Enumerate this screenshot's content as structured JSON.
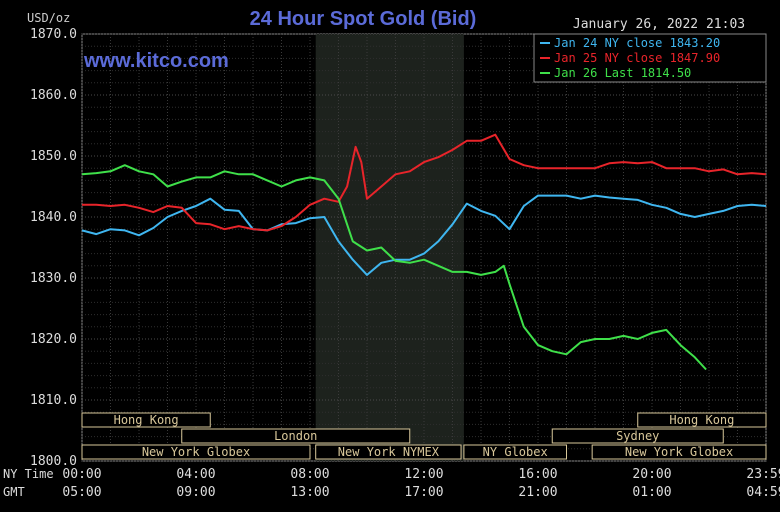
{
  "chart_data": {
    "type": "line",
    "title": "24 Hour Spot Gold (Bid)",
    "watermark": "www.kitco.com",
    "ylabel": "USD/oz",
    "timestamp": "January 26, 2022 21:03",
    "ylim": [
      1800,
      1870
    ],
    "yticks": [
      "1870.0",
      "1860.0",
      "1850.0",
      "1840.0",
      "1830.0",
      "1820.0",
      "1810.0",
      "1800.0"
    ],
    "xlim": [
      0,
      24
    ],
    "grid": true,
    "legend_position": "top-right",
    "x_time_rows": [
      {
        "label": "NY Time",
        "ticks": [
          {
            "h": 0,
            "t": "00:00"
          },
          {
            "h": 4,
            "t": "04:00"
          },
          {
            "h": 8,
            "t": "08:00"
          },
          {
            "h": 12,
            "t": "12:00"
          },
          {
            "h": 16,
            "t": "16:00"
          },
          {
            "h": 20,
            "t": "20:00"
          },
          {
            "h": 24,
            "t": "23:59"
          }
        ]
      },
      {
        "label": "GMT",
        "ticks": [
          {
            "h": 0,
            "t": "05:00"
          },
          {
            "h": 4,
            "t": "09:00"
          },
          {
            "h": 8,
            "t": "13:00"
          },
          {
            "h": 12,
            "t": "17:00"
          },
          {
            "h": 16,
            "t": "21:00"
          },
          {
            "h": 20,
            "t": "01:00"
          },
          {
            "h": 24,
            "t": "04:59"
          }
        ]
      }
    ],
    "shaded_session": {
      "start": 8.2,
      "end": 13.4
    },
    "sessions": [
      {
        "name": "Hong Kong",
        "start": 0,
        "end": 4.5,
        "row": 0
      },
      {
        "name": "Hong Kong",
        "start": 19.5,
        "end": 24,
        "row": 0
      },
      {
        "name": "London",
        "start": 3.5,
        "end": 11.5,
        "row": 1
      },
      {
        "name": "Sydney",
        "start": 16.5,
        "end": 22.5,
        "row": 1
      },
      {
        "name": "New York Globex",
        "start": 0,
        "end": 8.0,
        "row": 2
      },
      {
        "name": "New York NYMEX",
        "start": 8.2,
        "end": 13.3,
        "row": 2
      },
      {
        "name": "NY Globex",
        "start": 13.4,
        "end": 17.0,
        "row": 2
      },
      {
        "name": "New York Globex",
        "start": 17.9,
        "end": 24,
        "row": 2
      }
    ],
    "series": [
      {
        "name": "Jan 24 NY close 1843.20",
        "color": "#3fb6f0",
        "x": [
          0,
          0.5,
          1,
          1.5,
          2,
          2.5,
          3,
          3.5,
          4,
          4.5,
          5,
          5.5,
          6,
          6.5,
          7,
          7.5,
          8,
          8.5,
          9,
          9.5,
          10,
          10.5,
          11,
          11.5,
          12,
          12.5,
          13,
          13.5,
          14,
          14.5,
          15,
          15.5,
          16,
          16.5,
          17,
          17.5,
          18,
          18.5,
          19,
          19.5,
          20,
          20.5,
          21,
          21.5,
          22,
          22.5,
          23,
          23.5,
          24
        ],
        "y": [
          1837.8,
          1837.2,
          1838.0,
          1837.8,
          1837.0,
          1838.2,
          1840.0,
          1841.0,
          1841.8,
          1843.0,
          1841.2,
          1841.0,
          1838.0,
          1837.8,
          1838.8,
          1839.0,
          1839.8,
          1840.0,
          1836.0,
          1833.0,
          1830.5,
          1832.5,
          1833.0,
          1833.0,
          1834.0,
          1836.0,
          1838.8,
          1842.2,
          1841.0,
          1840.2,
          1838.0,
          1841.8,
          1843.5,
          1843.5,
          1843.5,
          1843.0,
          1843.5,
          1843.2,
          1843.0,
          1842.8,
          1842.0,
          1841.5,
          1840.5,
          1840.0,
          1840.5,
          1841.0,
          1841.8,
          1842.0,
          1841.8
        ]
      },
      {
        "name": "Jan 25 NY close 1847.90",
        "color": "#e8242a",
        "x": [
          0,
          0.5,
          1,
          1.5,
          2,
          2.5,
          3,
          3.5,
          4,
          4.5,
          5,
          5.5,
          6,
          6.5,
          7,
          7.5,
          8,
          8.5,
          9,
          9.3,
          9.6,
          9.8,
          10.0,
          10.5,
          11,
          11.5,
          12,
          12.5,
          13,
          13.5,
          14,
          14.5,
          15,
          15.5,
          16,
          16.5,
          17,
          17.5,
          18,
          18.5,
          19,
          19.5,
          20,
          20.5,
          21,
          21.5,
          22,
          22.5,
          23,
          23.5,
          24
        ],
        "y": [
          1842.0,
          1842.0,
          1841.8,
          1842.0,
          1841.5,
          1840.8,
          1841.8,
          1841.5,
          1839.0,
          1838.8,
          1838.0,
          1838.5,
          1838.0,
          1837.8,
          1838.5,
          1840.0,
          1842.0,
          1843.0,
          1842.5,
          1845.0,
          1851.5,
          1849.0,
          1843.0,
          1845.0,
          1847.0,
          1847.5,
          1849.0,
          1849.8,
          1851.0,
          1852.5,
          1852.5,
          1853.5,
          1849.5,
          1848.5,
          1848.0,
          1848.0,
          1848.0,
          1848.0,
          1848.0,
          1848.8,
          1849.0,
          1848.8,
          1849.0,
          1848.0,
          1848.0,
          1848.0,
          1847.5,
          1847.8,
          1847.0,
          1847.2,
          1847.0
        ]
      },
      {
        "name": "Jan 26 Last 1814.50",
        "color": "#3fe04a",
        "x": [
          0,
          0.5,
          1,
          1.5,
          2,
          2.5,
          3,
          3.5,
          4,
          4.5,
          5,
          5.5,
          6,
          6.5,
          7,
          7.5,
          8,
          8.5,
          9,
          9.5,
          10,
          10.5,
          11,
          11.5,
          12,
          12.5,
          13,
          13.5,
          14,
          14.5,
          14.8,
          15,
          15.5,
          16,
          16.5,
          17,
          17.5,
          18,
          18.5,
          19,
          19.5,
          20,
          20.5,
          21,
          21.5,
          21.9
        ],
        "y": [
          1847.0,
          1847.2,
          1847.5,
          1848.5,
          1847.5,
          1847.0,
          1845.0,
          1845.8,
          1846.5,
          1846.5,
          1847.5,
          1847.0,
          1847.0,
          1846.0,
          1845.0,
          1846.0,
          1846.5,
          1846.0,
          1843.0,
          1836.0,
          1834.5,
          1835.0,
          1832.8,
          1832.5,
          1833.0,
          1832.0,
          1831.0,
          1831.0,
          1830.5,
          1831.0,
          1832.0,
          1829.0,
          1822.0,
          1819.0,
          1818.0,
          1817.5,
          1819.5,
          1820.0,
          1820.0,
          1820.5,
          1820.0,
          1821.0,
          1821.5,
          1819.0,
          1817.0,
          1815.0
        ]
      }
    ]
  }
}
